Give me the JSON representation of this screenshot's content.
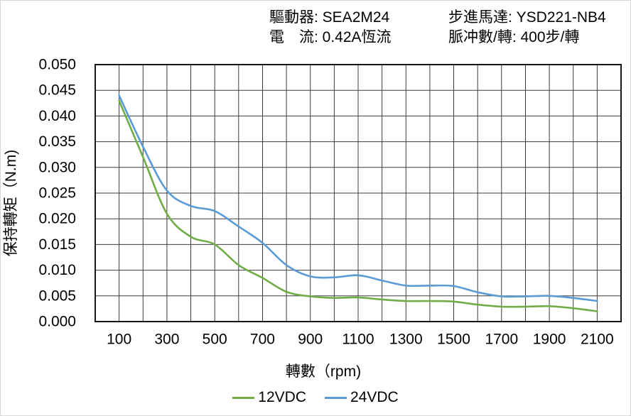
{
  "header": {
    "items": [
      {
        "text": "驅動器: SEA2M24"
      },
      {
        "text": "步進馬達: YSD221-NB4"
      },
      {
        "text": "電　流: 0.42A恆流"
      },
      {
        "text": "脈冲數/轉: 400步/轉"
      }
    ]
  },
  "chart_data": {
    "type": "line",
    "title": "",
    "xlabel": "轉數（rpm)",
    "ylabel": "保持轉矩（N.m)",
    "x": [
      100,
      200,
      300,
      400,
      500,
      600,
      700,
      800,
      900,
      1000,
      1100,
      1200,
      1300,
      1400,
      1500,
      1600,
      1700,
      1800,
      1900,
      2000,
      2100
    ],
    "series": [
      {
        "name": "12VDC",
        "color": "#70AD47",
        "values": [
          0.043,
          0.032,
          0.021,
          0.0165,
          0.015,
          0.011,
          0.0085,
          0.0058,
          0.0049,
          0.0046,
          0.0047,
          0.0043,
          0.004,
          0.004,
          0.0039,
          0.0033,
          0.0029,
          0.0029,
          0.003,
          0.0026,
          0.002
        ]
      },
      {
        "name": "24VDC",
        "color": "#5B9BD5",
        "values": [
          0.044,
          0.034,
          0.0255,
          0.0225,
          0.0215,
          0.0185,
          0.0153,
          0.011,
          0.0088,
          0.0086,
          0.009,
          0.008,
          0.007,
          0.007,
          0.0069,
          0.0057,
          0.0049,
          0.0049,
          0.005,
          0.0046,
          0.004
        ]
      }
    ],
    "xlim": [
      0,
      2200
    ],
    "ylim": [
      0,
      0.05
    ],
    "x_grid_step": 100,
    "y_grid_step": 0.005,
    "x_tick_labels": [
      "100",
      "300",
      "500",
      "700",
      "900",
      "1100",
      "1300",
      "1500",
      "1700",
      "1900",
      "2100"
    ],
    "y_tick_labels": [
      "0.050",
      "0.045",
      "0.040",
      "0.035",
      "0.030",
      "0.025",
      "0.020",
      "0.015",
      "0.010",
      "0.005",
      "0.000"
    ],
    "grid": true,
    "legend_position": "bottom",
    "grid_color": "#3d3d3d",
    "border_color": "#161616",
    "text_color": "#000000"
  }
}
